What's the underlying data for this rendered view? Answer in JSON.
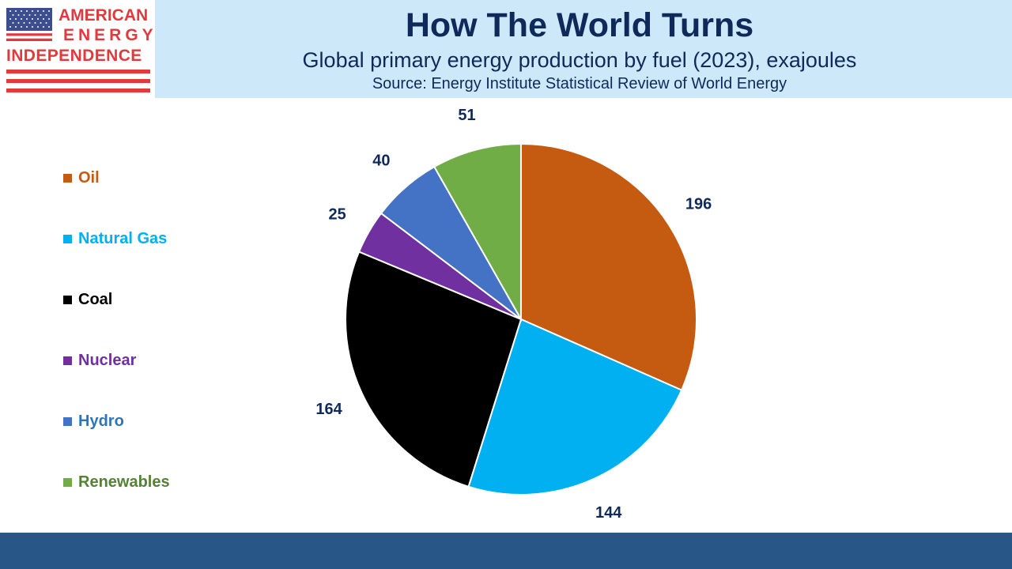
{
  "logo": {
    "line1": "AMERICAN",
    "line2": "ENERGY",
    "line3": "INDEPENDENCE",
    "icon": "us-flag-icon",
    "brand_color": "#e03a3e"
  },
  "header": {
    "title": "How The World Turns",
    "subtitle": "Global primary energy production by fuel (2023), exajoules",
    "source": "Source: Energy Institute Statistical Review of World Energy",
    "background": "#cce8f9",
    "text_color": "#0f2a5a"
  },
  "footer": {
    "color": "#285687"
  },
  "chart_data": {
    "type": "pie",
    "legend_position": "left",
    "label_color": "#0f2a5a",
    "categories": [
      "Oil",
      "Natural Gas",
      "Coal",
      "Nuclear",
      "Hydro",
      "Renewables"
    ],
    "values": [
      196,
      144,
      164,
      25,
      40,
      51
    ],
    "colors": [
      "#c55a11",
      "#00b0f0",
      "#000000",
      "#7030a0",
      "#4472c4",
      "#70ad47"
    ],
    "legend_text_colors": [
      "#c55a11",
      "#00b0f0",
      "#000000",
      "#7030a0",
      "#2e75b6",
      "#548235"
    ]
  }
}
